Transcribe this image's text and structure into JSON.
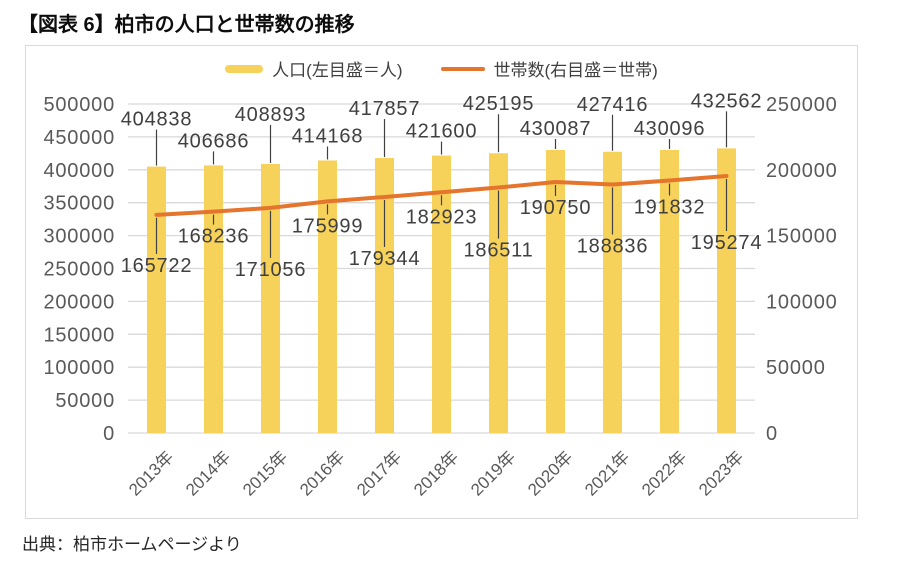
{
  "title": "【図表 6】柏市の人口と世帯数の推移",
  "source": "出典：柏市ホームページより",
  "legend": {
    "population_label": "人口(左目盛＝人)",
    "households_label": "世帯数(右目盛＝世帯)"
  },
  "colors": {
    "bar": "#F7D25A",
    "line": "#E5752D",
    "grid": "#D9D9D9",
    "axis_text": "#595959",
    "data_label_text": "#404040",
    "leader_line": "#404040"
  },
  "chart_data": {
    "type": "bar",
    "subtype": "combo bar+line, dual axis",
    "title": "柏市の人口と世帯数の推移",
    "categories": [
      "2013年",
      "2014年",
      "2015年",
      "2016年",
      "2017年",
      "2018年",
      "2019年",
      "2020年",
      "2021年",
      "2022年",
      "2023年"
    ],
    "series": [
      {
        "name": "人口(左目盛＝人)",
        "type": "bar",
        "axis": "left",
        "values": [
          404838,
          406686,
          408893,
          414168,
          417857,
          421600,
          425195,
          430087,
          427416,
          430096,
          432562
        ]
      },
      {
        "name": "世帯数(右目盛＝世帯)",
        "type": "line",
        "axis": "right",
        "values": [
          165722,
          168236,
          171056,
          175999,
          179344,
          182923,
          186511,
          190750,
          188836,
          191832,
          195274
        ]
      }
    ],
    "left_axis": {
      "min": 0,
      "max": 500000,
      "step": 50000,
      "ticks": [
        "500000",
        "450000",
        "400000",
        "350000",
        "300000",
        "250000",
        "200000",
        "150000",
        "100000",
        "50000",
        "0"
      ]
    },
    "right_axis": {
      "min": 0,
      "max": 250000,
      "step": 50000,
      "ticks": [
        "250000",
        "200000",
        "150000",
        "100000",
        "50000",
        "0"
      ]
    },
    "grid": true,
    "legend_position": "top",
    "data_labels": true
  }
}
